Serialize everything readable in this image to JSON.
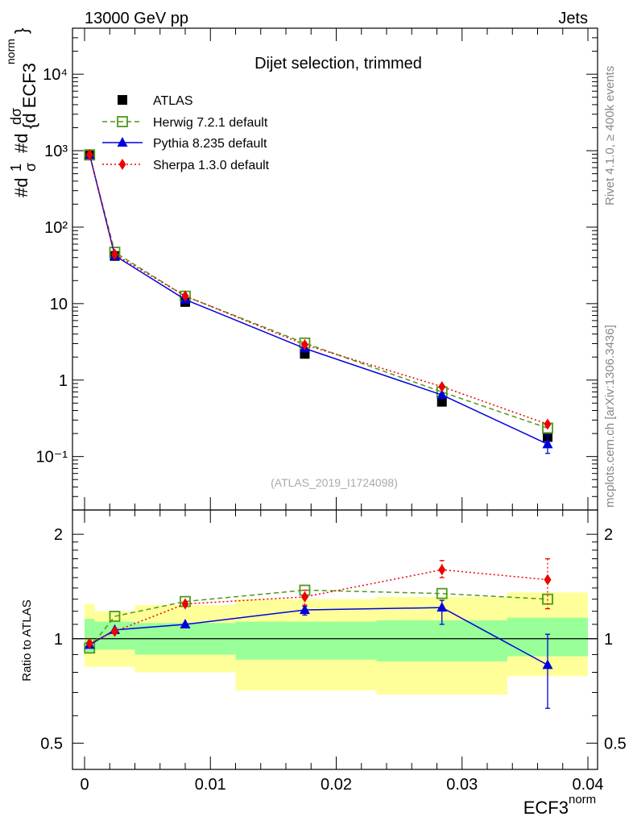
{
  "header": {
    "left": "13000 GeV pp",
    "right": "Jets",
    "side_top": "Rivet 4.1.0, ≥ 400k events",
    "side_bottom": "mcplots.cern.ch [arXiv:1306.3436]"
  },
  "chart_data": [
    {
      "type": "line",
      "panel": "main",
      "title": "Dijet selection, trimmed",
      "ylabel_parts": [
        "#d",
        "1",
        "σ",
        "#d",
        "dσ",
        "{d ECF3",
        "norm",
        "}"
      ],
      "xlim": [
        0,
        0.04
      ],
      "ylim": [
        0.02,
        40000
      ],
      "yscale": "log",
      "ytick_labels": [
        "10⁻¹",
        "1",
        "10",
        "10²",
        "10³",
        "10⁴"
      ],
      "ytick_values": [
        0.1,
        1,
        10,
        100,
        1000,
        10000
      ],
      "watermark": "(ATLAS_2019_I1724098)",
      "legend_position": "top-left",
      "x": [
        0.0004,
        0.0024,
        0.008,
        0.0175,
        0.0284,
        0.0368
      ],
      "series": [
        {
          "name": "ATLAS",
          "style": "data",
          "color": "#000000",
          "values": [
            900,
            42,
            10.5,
            2.2,
            0.52,
            0.18
          ]
        },
        {
          "name": "Herwig 7.2.1 default",
          "style": "dashed",
          "marker": "open-square",
          "color": "#4c9a1a",
          "values": [
            880,
            47,
            12.5,
            3.05,
            0.7,
            0.235
          ]
        },
        {
          "name": "Pythia 8.235 default",
          "style": "solid",
          "marker": "triangle",
          "color": "#0000dd",
          "values": [
            885,
            42.5,
            11.3,
            2.6,
            0.64,
            0.145
          ],
          "err_low": [
            null,
            null,
            null,
            null,
            null,
            0.11
          ],
          "err_high": [
            null,
            null,
            null,
            null,
            null,
            0.19
          ]
        },
        {
          "name": "Sherpa 1.3.0 default",
          "style": "dotted",
          "marker": "diamond",
          "color": "#ee0000",
          "values": [
            890,
            44,
            12.6,
            2.9,
            0.82,
            0.265
          ]
        }
      ]
    },
    {
      "type": "line",
      "panel": "ratio",
      "ylabel": "Ratio to ATLAS",
      "xlabel": "ECF3",
      "xlabel_sup": "norm",
      "xlim": [
        0,
        0.04
      ],
      "ylim": [
        0.42,
        2.35
      ],
      "yscale": "log",
      "ytick_labels": [
        "0.5",
        "1",
        "2"
      ],
      "ytick_values": [
        0.5,
        1,
        2
      ],
      "xtick_labels": [
        "0",
        "0.01",
        "0.02",
        "0.03",
        "0.04"
      ],
      "xtick_values": [
        0,
        0.01,
        0.02,
        0.03,
        0.04
      ],
      "band_edges": [
        0,
        0.0008,
        0.004,
        0.012,
        0.0232,
        0.0336,
        0.04
      ],
      "band_inner": [
        [
          0.91,
          1.14
        ],
        [
          0.93,
          1.12
        ],
        [
          0.9,
          1.11
        ],
        [
          0.87,
          1.12
        ],
        [
          0.86,
          1.13
        ],
        [
          0.89,
          1.15
        ]
      ],
      "band_outer": [
        [
          0.83,
          1.26
        ],
        [
          0.83,
          1.2
        ],
        [
          0.8,
          1.25
        ],
        [
          0.71,
          1.3
        ],
        [
          0.69,
          1.32
        ],
        [
          0.78,
          1.36
        ]
      ],
      "x": [
        0.0004,
        0.0024,
        0.008,
        0.0175,
        0.0284,
        0.0368
      ],
      "series": [
        {
          "name": "Herwig 7.2.1 default",
          "style": "dashed",
          "marker": "open-square",
          "color": "#4c9a1a",
          "values": [
            0.94,
            1.16,
            1.28,
            1.38,
            1.35,
            1.3
          ]
        },
        {
          "name": "Pythia 8.235 default",
          "style": "solid",
          "marker": "triangle",
          "color": "#0000dd",
          "values": [
            0.96,
            1.06,
            1.1,
            1.21,
            1.23,
            0.84
          ],
          "err_low": [
            null,
            null,
            null,
            1.17,
            1.1,
            0.63
          ],
          "err_high": [
            null,
            null,
            null,
            1.24,
            1.29,
            1.03
          ]
        },
        {
          "name": "Sherpa 1.3.0 default",
          "style": "dotted",
          "marker": "diamond",
          "color": "#ee0000",
          "values": [
            0.97,
            1.05,
            1.26,
            1.32,
            1.58,
            1.48
          ],
          "err_low": [
            null,
            null,
            null,
            1.25,
            1.5,
            1.22
          ],
          "err_high": [
            null,
            null,
            null,
            1.38,
            1.68,
            1.7
          ]
        }
      ]
    }
  ]
}
